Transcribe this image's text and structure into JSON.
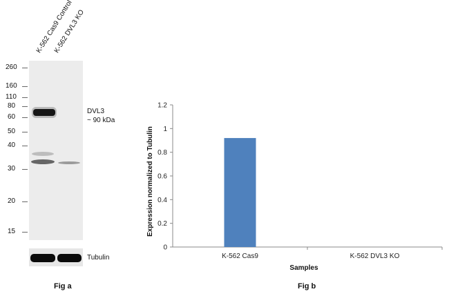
{
  "fig_a": {
    "lanes": [
      "K-562 Cas9 Control",
      "K-562 DVL3 KO"
    ],
    "markers": [
      "260",
      "160",
      "110",
      "80",
      "60",
      "50",
      "40",
      "30",
      "20",
      "15"
    ],
    "band_label_line1": "DVL3",
    "band_label_line2": "~ 90 kDa",
    "loading_control_label": "Tubulin",
    "caption": "Fig a"
  },
  "fig_b": {
    "caption": "Fig b"
  },
  "chart_data": {
    "type": "bar",
    "categories": [
      "K-562 Cas9",
      "K-562  DVL3 KO"
    ],
    "values": [
      0.92,
      0
    ],
    "xlabel": "Samples",
    "ylabel": "Expression  normalized to Tubulin",
    "ylim": [
      0,
      1.2
    ],
    "yticks": [
      "0",
      "0.2",
      "0.4",
      "0.6",
      "0.8",
      "1",
      "1.2"
    ],
    "bar_color": "#4f81bd",
    "grid": false
  }
}
